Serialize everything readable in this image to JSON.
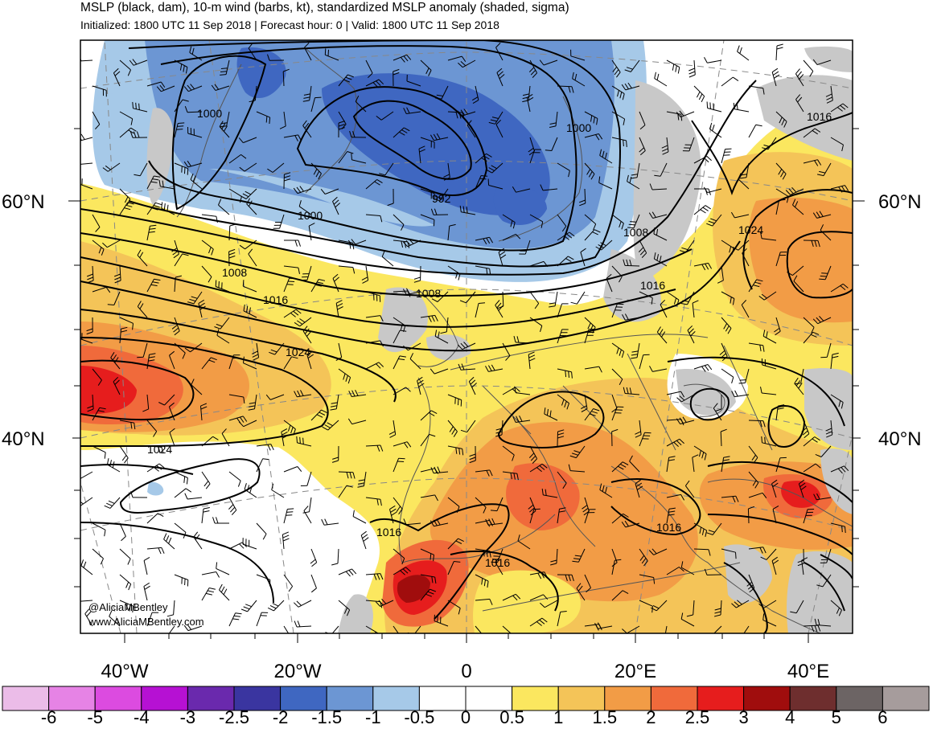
{
  "title": "MSLP (black, dam), 10-m wind (barbs, kt), standardized MSLP anomaly (shaded, sigma)",
  "subtitle": "Initialized: 1800 UTC 11 Sep 2018 | Forecast hour: 0 | Valid: 1800 UTC 11 Sep 2018",
  "credit": {
    "handle": "@AliciaMBentley",
    "site": "www.AliciaMBentley.com"
  },
  "lat_labels": {
    "lat60": "60°N",
    "lat40": "40°N"
  },
  "lon_labels": [
    "40°W",
    "20°W",
    "0",
    "20°E",
    "40°E"
  ],
  "contour_labels": [
    {
      "name": "contour-1000-greenland",
      "text": "1000"
    },
    {
      "name": "contour-1000-scandinavia",
      "text": "1000"
    },
    {
      "name": "contour-992-low",
      "text": "992"
    },
    {
      "name": "contour-1000-south",
      "text": "1000"
    },
    {
      "name": "contour-1008-atlantic",
      "text": "1008"
    },
    {
      "name": "contour-1008-baltic",
      "text": "1008"
    },
    {
      "name": "contour-1008-northsea",
      "text": "1008"
    },
    {
      "name": "contour-1016-atlantic",
      "text": "1016"
    },
    {
      "name": "contour-1016-baltic",
      "text": "1016"
    },
    {
      "name": "contour-1016-russia",
      "text": "1016"
    },
    {
      "name": "contour-1024-russia",
      "text": "1024"
    },
    {
      "name": "contour-1024-atlantic",
      "text": "1024"
    },
    {
      "name": "contour-1024-azores",
      "text": "1024"
    },
    {
      "name": "contour-1016-iberia",
      "text": "1016"
    },
    {
      "name": "contour-1016-med",
      "text": "1016"
    },
    {
      "name": "contour-1016-balkans",
      "text": "1016"
    }
  ],
  "colorbar": {
    "labels": [
      "-6",
      "-5",
      "-4",
      "-3",
      "-2.5",
      "-2",
      "-1.5",
      "-1",
      "-0.5",
      "0",
      "0.5",
      "1",
      "1.5",
      "2",
      "2.5",
      "3",
      "4",
      "5",
      "6"
    ],
    "colors": [
      "#ebbce8",
      "#e683e5",
      "#dc4be0",
      "#b611d3",
      "#6a29ad",
      "#3a35a0",
      "#3f67c1",
      "#6c96d3",
      "#a6c9e8",
      "#ffffff",
      "#ffffff",
      "#fbe75f",
      "#f4c458",
      "#f29c46",
      "#f06a3b",
      "#e61d1d",
      "#a00d0d",
      "#6e2e2e",
      "#6c6464",
      "#a69c9c"
    ]
  }
}
